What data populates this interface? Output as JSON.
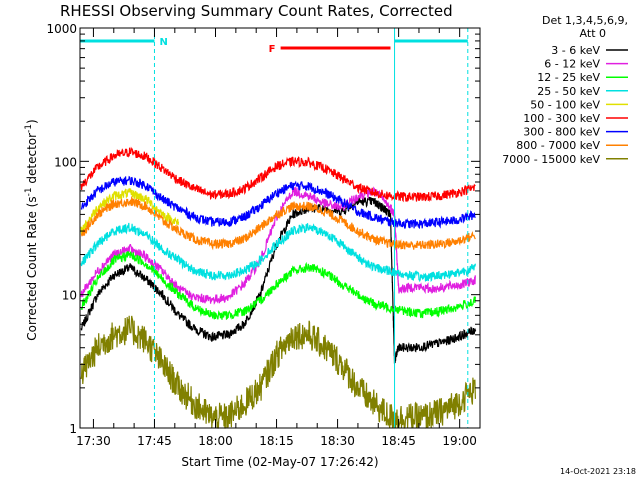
{
  "chart_data": {
    "type": "line",
    "title": "RHESSI Observing Summary Count Rates, Corrected",
    "ylabel_main": "Corrected Count Rate (s",
    "ylabel_sup1": "-1",
    "ylabel_mid": " detector",
    "ylabel_sup2": "-1",
    "ylabel_end": ")",
    "xlabel": "Start Time (02-May-07 17:26:42)",
    "footer_date": "14-Oct-2021 23:18",
    "y_scale": "log",
    "ylim": [
      1,
      1000
    ],
    "y_ticks": [
      "1",
      "10",
      "100",
      "1000"
    ],
    "x_range_minutes": [
      "17:26",
      "19:05"
    ],
    "x_ticks": [
      "17:30",
      "17:45",
      "18:00",
      "18:15",
      "18:30",
      "18:45",
      "19:00"
    ],
    "legend_header": [
      "Det 1,3,4,5,6,9,",
      "Att 0"
    ],
    "legend_placement": "right",
    "series": [
      {
        "name": "3 - 6 keV",
        "color": "#000000",
        "x": [
          "17:27",
          "17:31",
          "17:35",
          "17:39",
          "17:43",
          "17:47",
          "17:51",
          "17:55",
          "17:59",
          "18:03",
          "18:07",
          "18:11",
          "18:15",
          "18:19",
          "18:23",
          "18:27",
          "18:31",
          "18:35",
          "18:39",
          "18:41",
          "18:43",
          "18:44",
          "18:45",
          "18:49",
          "18:53",
          "18:57",
          "19:01",
          "19:04"
        ],
        "y": [
          5.5,
          10,
          14,
          16,
          13,
          10,
          7,
          5.5,
          4.8,
          5,
          6,
          10,
          24,
          40,
          45,
          44,
          42,
          50,
          50,
          45,
          40,
          3.2,
          4.0,
          4.0,
          4.2,
          4.5,
          5,
          5.5
        ]
      },
      {
        "name": "6 - 12 keV",
        "color": "#e020e0",
        "x": [
          "17:27",
          "17:31",
          "17:35",
          "17:39",
          "17:43",
          "17:47",
          "17:51",
          "17:55",
          "17:59",
          "18:03",
          "18:07",
          "18:11",
          "18:15",
          "18:19",
          "18:23",
          "18:27",
          "18:31",
          "18:35",
          "18:39",
          "18:43",
          "18:44",
          "18:45",
          "18:49",
          "18:53",
          "18:57",
          "19:01",
          "19:04"
        ],
        "y": [
          10,
          15,
          20,
          22,
          19,
          15,
          11,
          9.5,
          9.2,
          9.5,
          12,
          18,
          38,
          60,
          55,
          48,
          45,
          55,
          60,
          45,
          40,
          11,
          11.5,
          11,
          11.5,
          12,
          13
        ]
      },
      {
        "name": "12 - 25 keV",
        "color": "#00ff00",
        "x": [
          "17:27",
          "17:31",
          "17:35",
          "17:39",
          "17:43",
          "17:47",
          "17:51",
          "17:55",
          "17:59",
          "18:03",
          "18:07",
          "18:11",
          "18:15",
          "18:19",
          "18:23",
          "18:27",
          "18:31",
          "18:35",
          "18:39",
          "18:43",
          "18:47",
          "18:51",
          "18:55",
          "18:59",
          "19:04"
        ],
        "y": [
          8,
          13,
          18,
          20,
          17,
          13,
          10,
          8,
          7,
          7,
          7.5,
          9,
          12,
          15,
          16,
          14.5,
          12,
          10,
          8.5,
          8,
          7.5,
          7.2,
          7.5,
          8,
          9
        ]
      },
      {
        "name": "25 - 50 keV",
        "color": "#00e0e0",
        "x": [
          "17:27",
          "17:31",
          "17:35",
          "17:39",
          "17:43",
          "17:47",
          "17:51",
          "17:55",
          "17:59",
          "18:03",
          "18:07",
          "18:11",
          "18:15",
          "18:19",
          "18:23",
          "18:27",
          "18:31",
          "18:35",
          "18:39",
          "18:43",
          "18:47",
          "18:51",
          "18:55",
          "18:59",
          "19:04"
        ],
        "y": [
          17,
          24,
          30,
          32,
          28,
          22,
          18,
          15,
          14,
          14,
          15,
          18,
          24,
          30,
          32,
          29,
          24,
          19,
          16,
          15,
          14,
          13.5,
          14,
          14.5,
          16
        ]
      },
      {
        "name": "50 - 100 keV",
        "color": "#e0e000",
        "x": [
          "17:27",
          "17:31",
          "17:35",
          "17:39",
          "17:43",
          "17:47",
          "17:51"
        ],
        "y": [
          30,
          45,
          55,
          58,
          52,
          40,
          34
        ]
      },
      {
        "name": "100 - 300 keV",
        "color": "#ff0000",
        "x": [
          "17:27",
          "17:31",
          "17:35",
          "17:39",
          "17:43",
          "17:47",
          "17:51",
          "17:55",
          "17:59",
          "18:03",
          "18:07",
          "18:11",
          "18:15",
          "18:19",
          "18:23",
          "18:27",
          "18:31",
          "18:35",
          "18:39",
          "18:43",
          "18:47",
          "18:51",
          "18:55",
          "18:59",
          "19:04"
        ],
        "y": [
          65,
          90,
          110,
          118,
          108,
          88,
          72,
          62,
          56,
          57,
          62,
          75,
          92,
          100,
          98,
          88,
          75,
          64,
          58,
          55,
          54,
          54,
          55,
          58,
          64
        ]
      },
      {
        "name": "300 - 800 keV",
        "color": "#0000ff",
        "x": [
          "17:27",
          "17:31",
          "17:35",
          "17:39",
          "17:43",
          "17:47",
          "17:51",
          "17:55",
          "17:59",
          "18:03",
          "18:07",
          "18:11",
          "18:15",
          "18:19",
          "18:23",
          "18:27",
          "18:31",
          "18:35",
          "18:39",
          "18:43",
          "18:47",
          "18:51",
          "18:55",
          "18:59",
          "19:04"
        ],
        "y": [
          45,
          60,
          70,
          72,
          66,
          52,
          44,
          38,
          35,
          35,
          38,
          46,
          58,
          66,
          65,
          58,
          50,
          42,
          38,
          35,
          34,
          34,
          35,
          36,
          40
        ]
      },
      {
        "name": "800 - 7000 keV",
        "color": "#ff8000",
        "x": [
          "17:27",
          "17:31",
          "17:35",
          "17:39",
          "17:43",
          "17:47",
          "17:51",
          "17:55",
          "17:59",
          "18:03",
          "18:07",
          "18:11",
          "18:15",
          "18:19",
          "18:23",
          "18:27",
          "18:31",
          "18:35",
          "18:39",
          "18:43",
          "18:47",
          "18:51",
          "18:55",
          "18:59",
          "19:04"
        ],
        "y": [
          28,
          40,
          48,
          50,
          46,
          36,
          30,
          26,
          24,
          24,
          26,
          32,
          40,
          46,
          46,
          42,
          36,
          30,
          26,
          24,
          23.5,
          23.5,
          24,
          25,
          28
        ]
      },
      {
        "name": "7000 - 15000 keV",
        "color": "#808000",
        "x": [
          "17:27",
          "17:31",
          "17:35",
          "17:39",
          "17:43",
          "17:47",
          "17:51",
          "17:55",
          "17:59",
          "18:03",
          "18:07",
          "18:11",
          "18:15",
          "18:19",
          "18:23",
          "18:27",
          "18:31",
          "18:35",
          "18:39",
          "18:43",
          "18:47",
          "18:51",
          "18:55",
          "18:59",
          "19:04"
        ],
        "y": [
          2.5,
          4,
          5,
          5.5,
          4.5,
          3,
          2,
          1.5,
          1.2,
          1.2,
          1.5,
          2,
          3.5,
          5,
          5,
          4,
          3,
          2,
          1.5,
          1.2,
          1.2,
          1.2,
          1.3,
          1.5,
          2
        ]
      }
    ],
    "annotations": {
      "night_flag": {
        "label": "N",
        "color": "#00e0e0",
        "intervals": [
          [
            "17:26",
            "17:45"
          ],
          [
            "18:44",
            "19:02"
          ]
        ]
      },
      "flare_flag": {
        "label": "F",
        "color": "#ff0000",
        "interval": [
          "18:16",
          "18:43"
        ]
      }
    }
  }
}
